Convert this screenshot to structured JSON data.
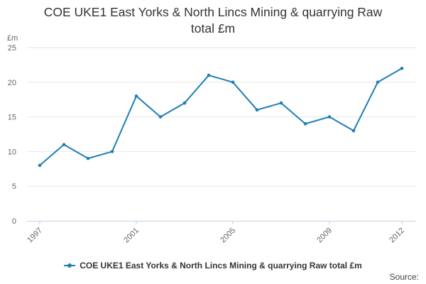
{
  "title_lines": [
    "COE UKE1 East Yorks & North Lincs Mining & quarrying Raw",
    "total £m"
  ],
  "source_label": "Source:",
  "colors": {
    "series": "#1f7fb5",
    "grid": "#e6e6e6",
    "axis": "#c0d0e0"
  },
  "chart_data": {
    "type": "line",
    "title": "COE UKE1 East Yorks & North Lincs Mining & quarrying Raw total £m",
    "ylabel": "£m",
    "xlabel": "",
    "x": [
      1997,
      1998,
      1999,
      2000,
      2001,
      2002,
      2003,
      2004,
      2005,
      2006,
      2007,
      2008,
      2009,
      2010,
      2011,
      2012
    ],
    "x_tick_labels": [
      "1997",
      "2001",
      "2005",
      "2009",
      "2012"
    ],
    "ylim": [
      0,
      25
    ],
    "y_ticks": [
      0,
      5,
      10,
      15,
      20,
      25
    ],
    "grid": true,
    "legend_position": "bottom",
    "series": [
      {
        "name": "COE UKE1 East Yorks & North Lincs Mining & quarrying Raw total £m",
        "values": [
          8,
          11,
          9,
          10,
          18,
          15,
          17,
          21,
          20,
          16,
          17,
          14,
          15,
          13,
          20,
          22
        ]
      }
    ]
  }
}
